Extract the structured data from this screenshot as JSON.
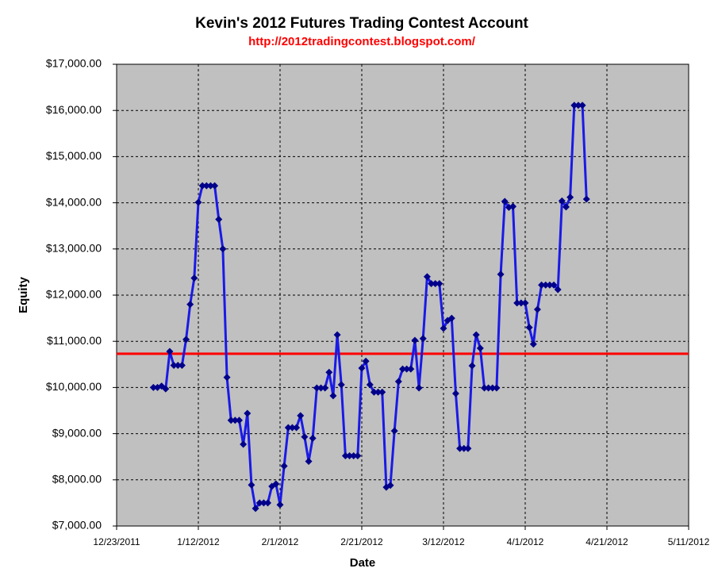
{
  "chart_data": {
    "type": "line",
    "title": "Kevin's 2012 Futures Trading Contest Account",
    "subtitle": "http://2012tradingcontest.blogspot.com/",
    "x_label": "Date",
    "y_label": "Equity",
    "x": [
      "1/1/2012",
      "1/2/2012",
      "1/3/2012",
      "1/4/2012",
      "1/5/2012",
      "1/6/2012",
      "1/7/2012",
      "1/8/2012",
      "1/9/2012",
      "1/10/2012",
      "1/11/2012",
      "1/12/2012",
      "1/13/2012",
      "1/14/2012",
      "1/15/2012",
      "1/16/2012",
      "1/17/2012",
      "1/18/2012",
      "1/19/2012",
      "1/20/2012",
      "1/21/2012",
      "1/22/2012",
      "1/23/2012",
      "1/24/2012",
      "1/25/2012",
      "1/26/2012",
      "1/27/2012",
      "1/28/2012",
      "1/29/2012",
      "1/30/2012",
      "1/31/2012",
      "2/1/2012",
      "2/2/2012",
      "2/3/2012",
      "2/4/2012",
      "2/5/2012",
      "2/6/2012",
      "2/7/2012",
      "2/8/2012",
      "2/9/2012",
      "2/10/2012",
      "2/11/2012",
      "2/12/2012",
      "2/13/2012",
      "2/14/2012",
      "2/15/2012",
      "2/16/2012",
      "2/17/2012",
      "2/18/2012",
      "2/19/2012",
      "2/20/2012",
      "2/21/2012",
      "2/22/2012",
      "2/23/2012",
      "2/24/2012",
      "2/25/2012",
      "2/26/2012",
      "2/27/2012",
      "2/28/2012",
      "2/29/2012",
      "3/1/2012",
      "3/2/2012",
      "3/3/2012",
      "3/4/2012",
      "3/5/2012",
      "3/6/2012",
      "3/7/2012",
      "3/8/2012",
      "3/9/2012",
      "3/10/2012",
      "3/11/2012",
      "3/12/2012",
      "3/13/2012",
      "3/14/2012",
      "3/15/2012",
      "3/16/2012",
      "3/17/2012",
      "3/18/2012",
      "3/19/2012",
      "3/20/2012",
      "3/21/2012",
      "3/22/2012",
      "3/23/2012",
      "3/24/2012",
      "3/25/2012",
      "3/26/2012",
      "3/27/2012",
      "3/28/2012",
      "3/29/2012",
      "3/30/2012",
      "3/31/2012",
      "4/1/2012",
      "4/2/2012",
      "4/3/2012",
      "4/4/2012",
      "4/5/2012",
      "4/6/2012",
      "4/7/2012",
      "4/8/2012",
      "4/9/2012",
      "4/10/2012",
      "4/11/2012",
      "4/12/2012",
      "4/13/2012",
      "4/14/2012",
      "4/15/2012",
      "4/16/2012"
    ],
    "series": [
      {
        "name": "Equity",
        "color": "#1a1ae6",
        "marker_color": "#00008b",
        "values": [
          10000,
          10000,
          10030,
          9970,
          10780,
          10480,
          10480,
          10480,
          11040,
          11800,
          12370,
          14010,
          14370,
          14370,
          14370,
          14370,
          13640,
          13000,
          10220,
          9290,
          9290,
          9290,
          8770,
          9440,
          7890,
          7380,
          7500,
          7500,
          7500,
          7860,
          7910,
          7460,
          8300,
          9130,
          9130,
          9130,
          9390,
          8930,
          8400,
          8900,
          9990,
          9990,
          9990,
          10330,
          9820,
          11140,
          10060,
          8520,
          8520,
          8520,
          8520,
          10420,
          10570,
          10060,
          9900,
          9900,
          9900,
          7840,
          7880,
          9060,
          10130,
          10400,
          10400,
          10400,
          11020,
          9990,
          11060,
          12400,
          12250,
          12250,
          12250,
          11280,
          11450,
          11500,
          9870,
          8680,
          8680,
          8680,
          10470,
          11140,
          10850,
          9990,
          9990,
          9990,
          9990,
          12450,
          14030,
          13900,
          13920,
          11830,
          11830,
          11830,
          11300,
          10940,
          11690,
          12220,
          12220,
          12220,
          12220,
          12120,
          14040,
          13910,
          14120,
          16110,
          16110,
          16110,
          14080
        ]
      }
    ],
    "reference_line": {
      "value": 10730,
      "color": "#ff0000"
    },
    "xlim": [
      "12/23/2011",
      "5/11/2012"
    ],
    "xticks": [
      "12/23/2011",
      "1/12/2012",
      "2/1/2012",
      "2/21/2012",
      "3/12/2012",
      "4/1/2012",
      "4/21/2012",
      "5/11/2012"
    ],
    "ylim": [
      7000,
      17000
    ],
    "yticks": [
      {
        "value": 7000,
        "label": "$7,000.00"
      },
      {
        "value": 8000,
        "label": "$8,000.00"
      },
      {
        "value": 9000,
        "label": "$9,000.00"
      },
      {
        "value": 10000,
        "label": "$10,000.00"
      },
      {
        "value": 11000,
        "label": "$11,000.00"
      },
      {
        "value": 12000,
        "label": "$12,000.00"
      },
      {
        "value": 13000,
        "label": "$13,000.00"
      },
      {
        "value": 14000,
        "label": "$14,000.00"
      },
      {
        "value": 15000,
        "label": "$15,000.00"
      },
      {
        "value": 16000,
        "label": "$16,000.00"
      },
      {
        "value": 17000,
        "label": "$17,000.00"
      }
    ],
    "grid": true,
    "plot_background": "#c0c0c0"
  }
}
